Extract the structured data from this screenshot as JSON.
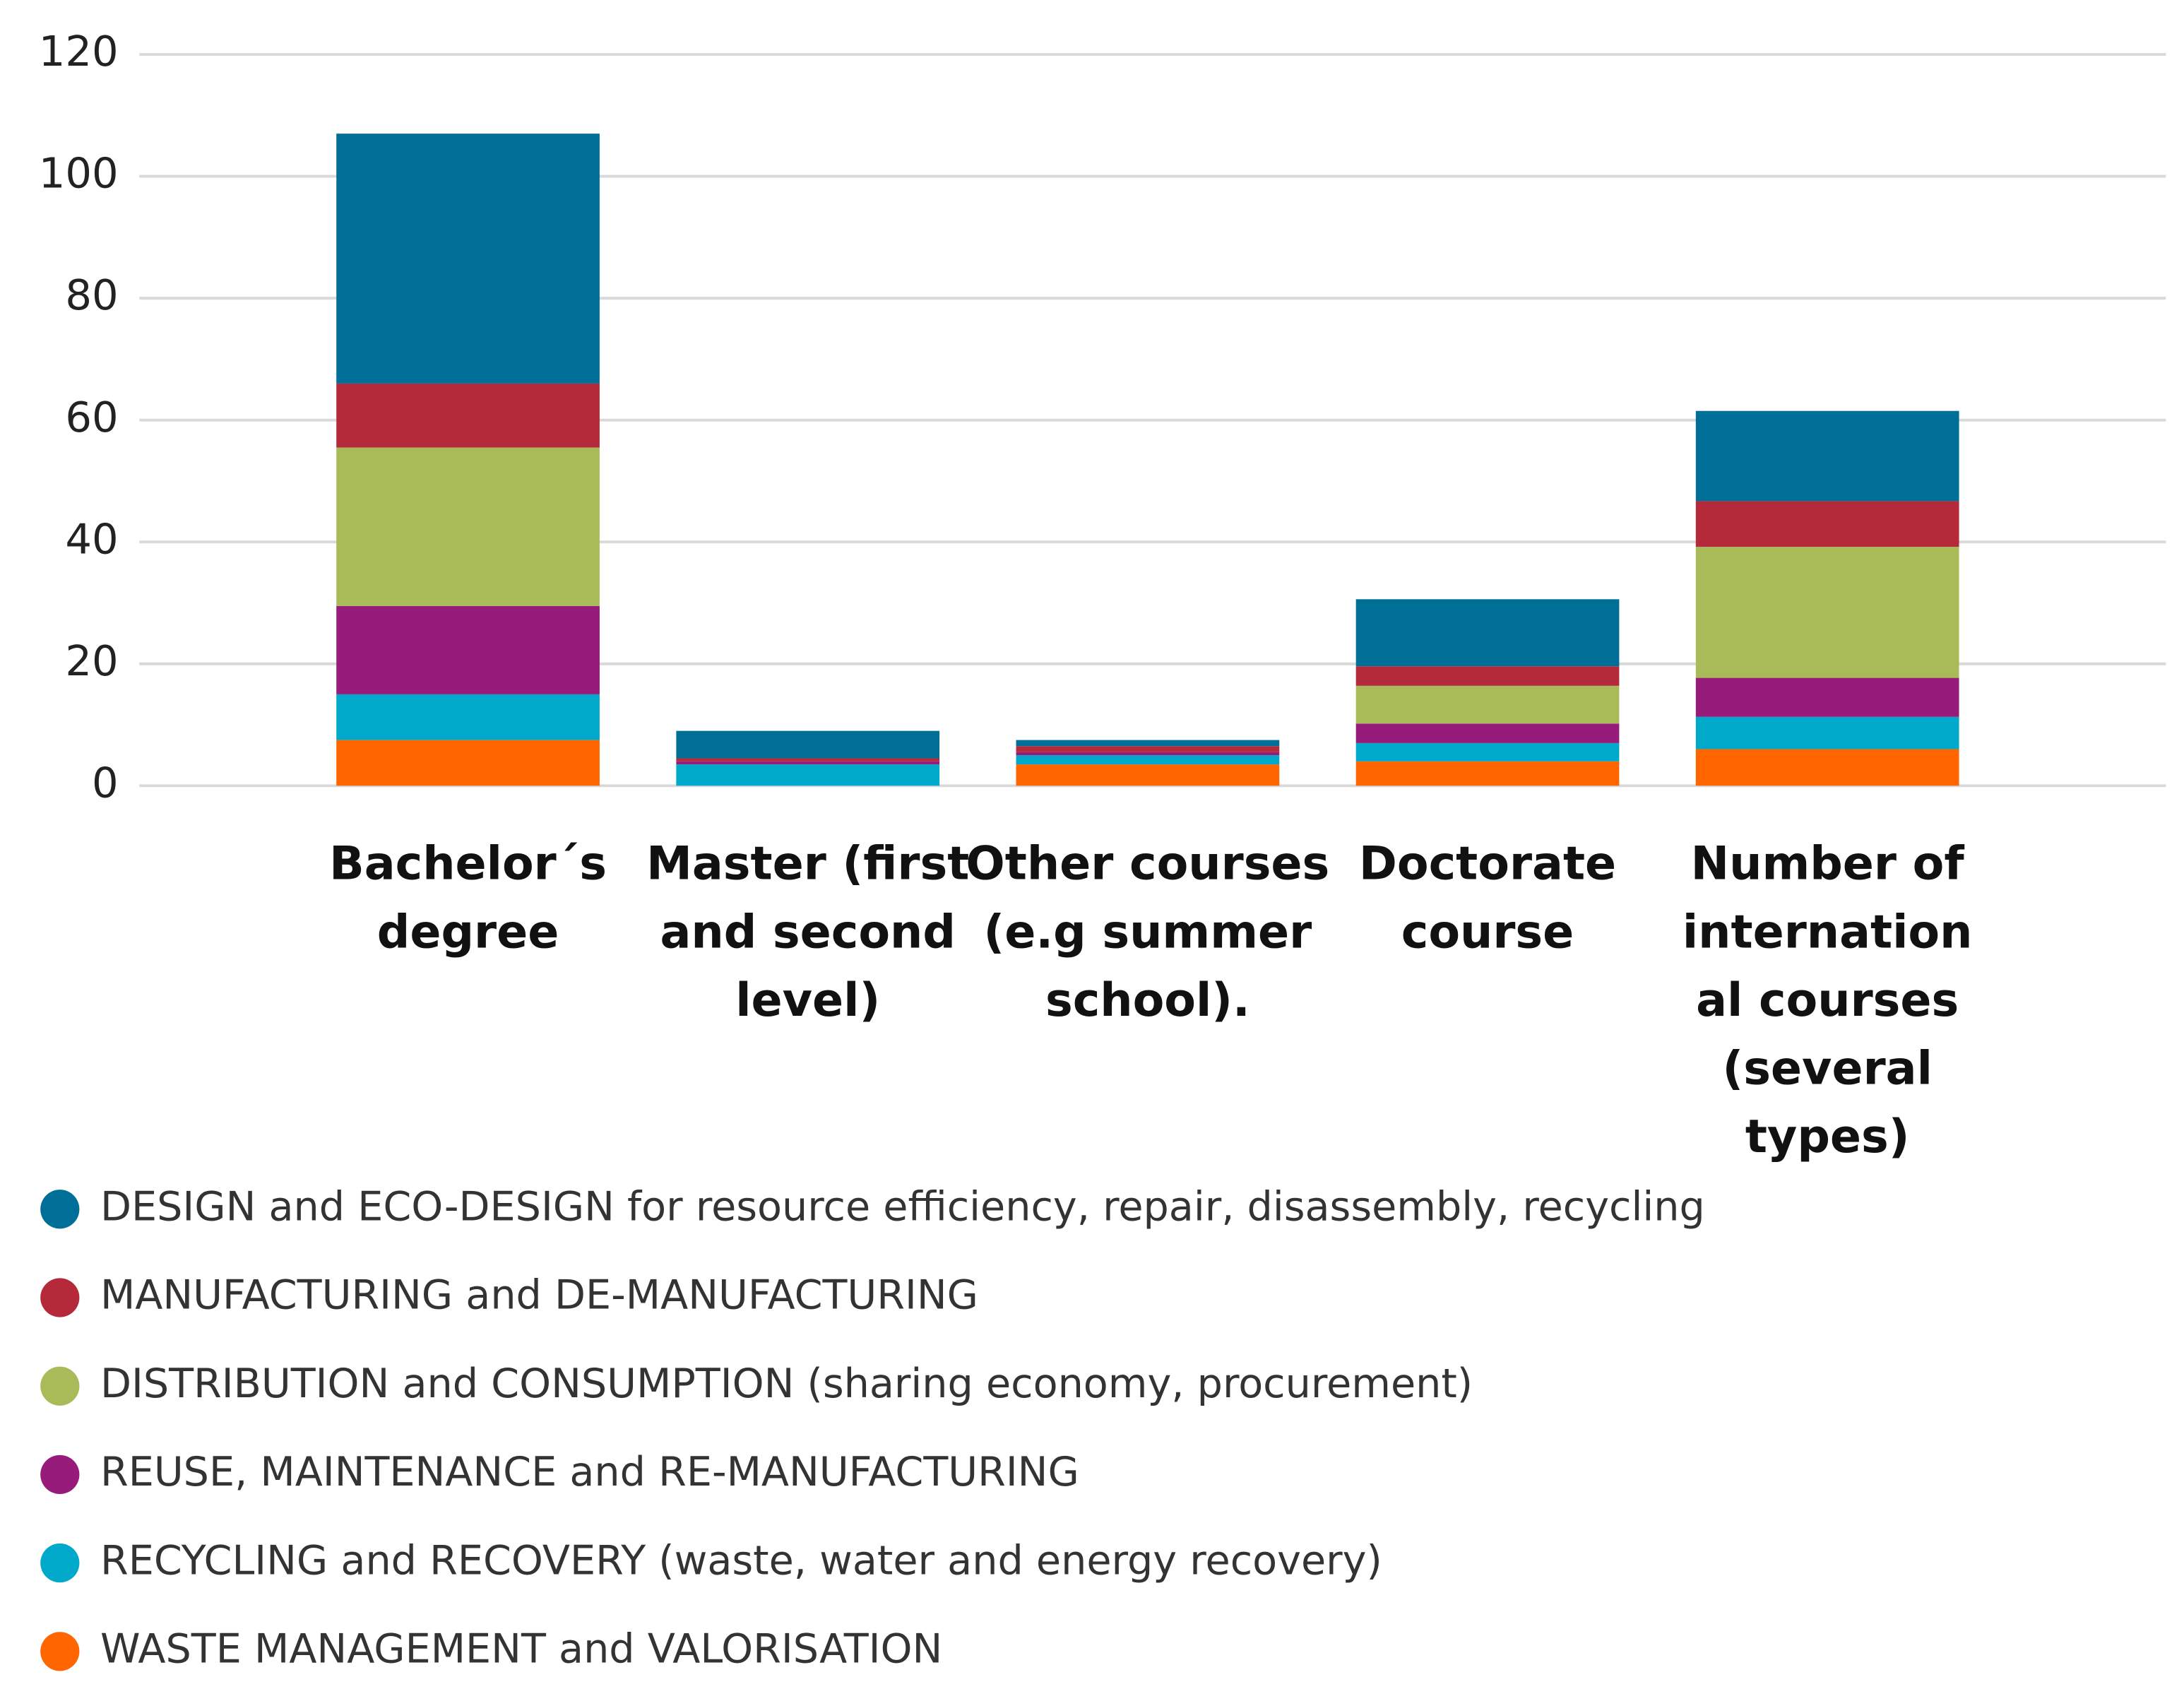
{
  "chart_data": {
    "type": "stacked_bar",
    "categories": [
      "Bachelor´s\ndegree",
      "Master (first\nand second\nlevel)",
      "Other courses\n(e.g summer\nschool).",
      "Doctorate\ncourse",
      "Number of\ninternation\nal courses\n(several\ntypes)"
    ],
    "series": [
      {
        "name": "WASTE MANAGEMENT and VALORISATION",
        "color": "#ff6600",
        "values": [
          7.5,
          0,
          3.5,
          4,
          6
        ]
      },
      {
        "name": "RECYCLING and RECOVERY (waste, water and energy recovery)",
        "color": "#00a9c9",
        "values": [
          7.5,
          3.5,
          1.5,
          3,
          5.3
        ]
      },
      {
        "name": "REUSE, MAINTENANCE and RE-MANUFACTURING",
        "color": "#971b7a",
        "values": [
          14.5,
          0.5,
          0.5,
          3.2,
          6.4
        ]
      },
      {
        "name": "DISTRIBUTION and CONSUMPTION (sharing economy, procurement)",
        "color": "#a9bb59",
        "values": [
          26,
          0,
          0,
          6.2,
          21.5
        ]
      },
      {
        "name": "MANUFACTURING and DE-MANUFACTURING",
        "color": "#b52a3a",
        "values": [
          10.5,
          0.5,
          1,
          3.2,
          7.5
        ]
      },
      {
        "name": "DESIGN and ECO-DESIGN for resource efficiency, repair, disassembly, recycling",
        "color": "#006f98",
        "values": [
          41,
          4.5,
          1,
          11,
          14.8
        ]
      }
    ],
    "ylim": [
      0,
      120
    ],
    "yticks": [
      0,
      20,
      40,
      60,
      80,
      100,
      120
    ],
    "grid": true
  }
}
